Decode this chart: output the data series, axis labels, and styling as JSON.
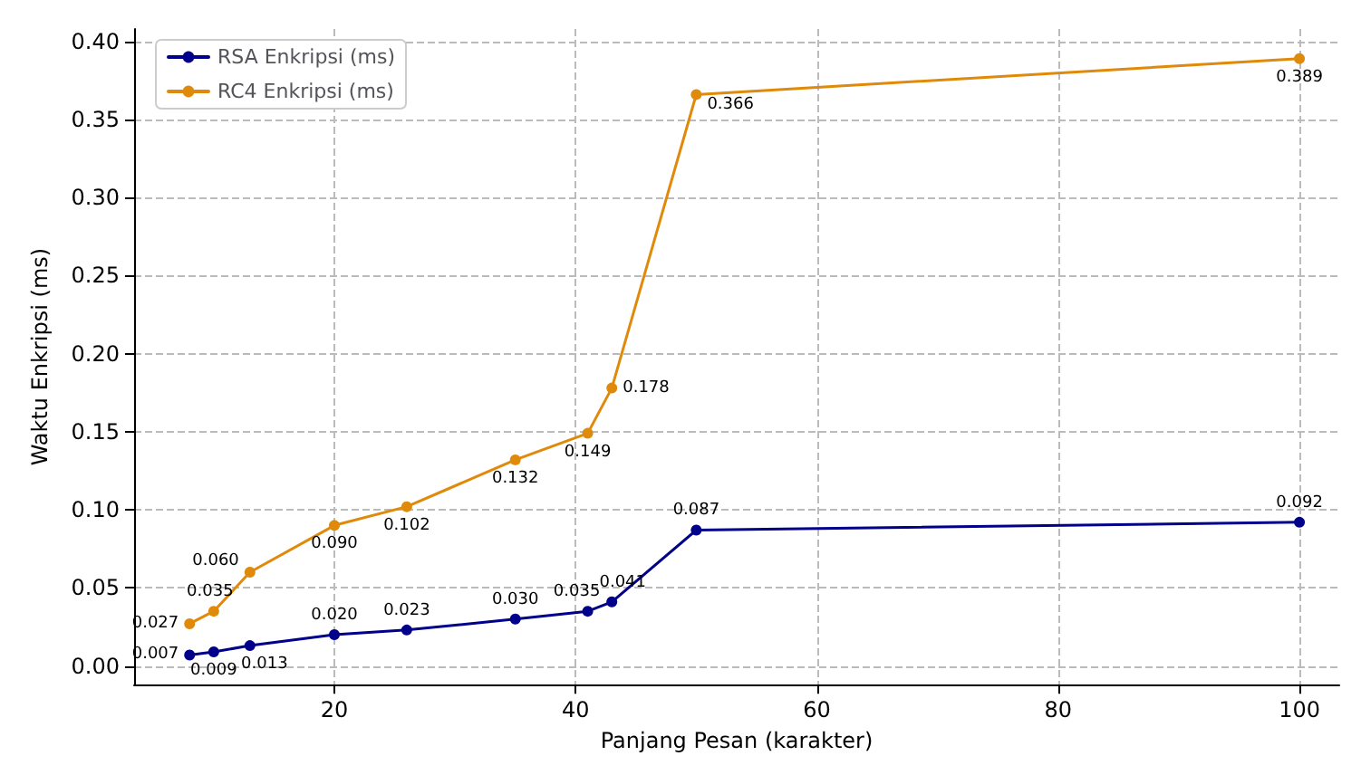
{
  "chart_data": {
    "type": "line",
    "xlabel": "Panjang Pesan (karakter)",
    "ylabel": "Waktu Enkripsi (ms)",
    "x": [
      8,
      10,
      13,
      20,
      26,
      35,
      41,
      43,
      50,
      100
    ],
    "series": [
      {
        "name": "RSA Enkripsi (ms)",
        "color": "#00008b",
        "values": [
          0.007,
          0.009,
          0.013,
          0.02,
          0.023,
          0.03,
          0.035,
          0.041,
          0.087,
          0.092
        ],
        "value_labels": [
          "0.007",
          "0.009",
          "0.013",
          "0.020",
          "0.023",
          "0.030",
          "0.035",
          "0.041",
          "0.087",
          "0.092"
        ]
      },
      {
        "name": "RC4 Enkripsi (ms)",
        "color": "#e08a0b",
        "values": [
          0.027,
          0.035,
          0.06,
          0.09,
          0.102,
          0.132,
          0.149,
          0.178,
          0.366,
          0.389
        ],
        "value_labels": [
          "0.027",
          "0.035",
          "0.060",
          "0.090",
          "0.102",
          "0.132",
          "0.149",
          "0.178",
          "0.366",
          "0.389"
        ]
      }
    ],
    "xlim": [
      3.4,
      103.3
    ],
    "xticks": [
      20,
      40,
      60,
      80,
      100
    ],
    "ylim": [
      -0.012,
      0.408
    ],
    "yticks": [
      {
        "value": 0,
        "label": "0.00"
      },
      {
        "value": 0.05,
        "label": "0.05"
      },
      {
        "value": 0.1,
        "label": "0.10"
      },
      {
        "value": 0.15,
        "label": "0.15"
      },
      {
        "value": 0.2,
        "label": "0.20"
      },
      {
        "value": 0.25,
        "label": "0.25"
      },
      {
        "value": 0.3,
        "label": "0.30"
      },
      {
        "value": 0.35,
        "label": "0.35"
      },
      {
        "value": 0.4,
        "label": "0.40"
      }
    ],
    "grid": true,
    "legend": "top left",
    "marker": "circle",
    "line_style": "solid"
  }
}
